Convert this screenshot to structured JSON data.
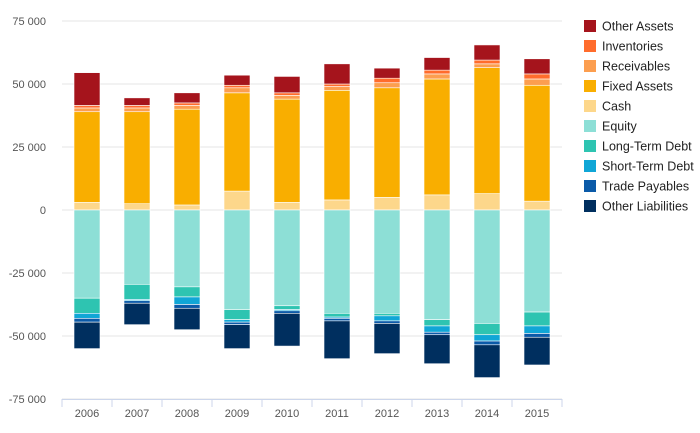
{
  "chart_data": {
    "type": "bar",
    "stacked": true,
    "title": "",
    "xlabel": "",
    "ylabel": "",
    "ylim": [
      -75000,
      75000
    ],
    "yticks": [
      75000,
      50000,
      25000,
      0,
      -25000,
      -50000,
      -75000
    ],
    "ytick_labels": [
      "75 000",
      "50 000",
      "25 000",
      "0",
      "-25 000",
      "-50 000",
      "-75 000"
    ],
    "categories": [
      "2006",
      "2007",
      "2008",
      "2009",
      "2010",
      "2011",
      "2012",
      "2013",
      "2014",
      "2015"
    ],
    "grid": true,
    "legend": {
      "position": "right"
    },
    "series": [
      {
        "name": "Cash",
        "color": "#fdd78b",
        "values": [
          3000,
          2500,
          2000,
          7500,
          3000,
          4000,
          5000,
          6000,
          6500,
          3500
        ]
      },
      {
        "name": "Fixed Assets",
        "color": "#f9ae00",
        "values": [
          36000,
          36500,
          38000,
          39000,
          41000,
          43500,
          43500,
          46000,
          50000,
          46000
        ]
      },
      {
        "name": "Receivables",
        "color": "#fc9e4f",
        "values": [
          1500,
          1500,
          1500,
          2000,
          1500,
          1500,
          2000,
          2000,
          1500,
          2500
        ]
      },
      {
        "name": "Inventories",
        "color": "#ff6c2c",
        "values": [
          1000,
          1000,
          1000,
          1000,
          1000,
          1000,
          1800,
          1500,
          1500,
          2000
        ]
      },
      {
        "name": "Other Assets",
        "color": "#a5141c",
        "values": [
          13000,
          3000,
          4000,
          4000,
          6500,
          8000,
          4000,
          5000,
          6000,
          6000
        ]
      },
      {
        "name": "Equity",
        "color": "#8ddfd6",
        "values": [
          -35000,
          -29500,
          -30500,
          -39500,
          -38000,
          -41000,
          -41000,
          -43500,
          -45000,
          -40500
        ]
      },
      {
        "name": "Long-Term Debt",
        "color": "#2ec4b1",
        "values": [
          -6000,
          -6000,
          -4000,
          -4000,
          -1500,
          -1500,
          -1000,
          -2500,
          -4500,
          -5500
        ]
      },
      {
        "name": "Short-Term Debt",
        "color": "#10a6d6",
        "values": [
          -2000,
          -500,
          -3000,
          -1000,
          -500,
          -500,
          -2000,
          -2500,
          -2500,
          -3000
        ]
      },
      {
        "name": "Trade Payables",
        "color": "#0b5aa8",
        "values": [
          -1500,
          -1000,
          -1500,
          -1000,
          -1000,
          -1000,
          -1000,
          -1000,
          -1500,
          -1500
        ]
      },
      {
        "name": "Other Liabilities",
        "color": "#002f5f",
        "values": [
          -10500,
          -8500,
          -8500,
          -9500,
          -13000,
          -15000,
          -12000,
          -11500,
          -13000,
          -11000
        ]
      }
    ],
    "legend_order": [
      "Other Assets",
      "Inventories",
      "Receivables",
      "Fixed Assets",
      "Cash",
      "Equity",
      "Long-Term Debt",
      "Short-Term Debt",
      "Trade Payables",
      "Other Liabilities"
    ]
  }
}
